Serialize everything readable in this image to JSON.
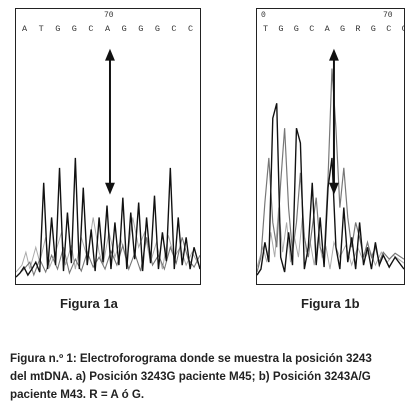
{
  "figure_a": {
    "tick": "70",
    "sequence": "A T G G C A G G G   C C C",
    "label": "Figura 1a"
  },
  "figure_b": {
    "tick_left": "0",
    "tick_right": "70",
    "sequence": "T G G C A G R G C C C",
    "label": "Figura 1b"
  },
  "caption": {
    "line1": "Figura n.º 1: Electroforograma donde se muestra la posición 3243",
    "line2": "del mtDNA.  a) Posición 3243G paciente M45; b) Posición 3243A/G",
    "line3": "paciente M43.  R = A ó G."
  }
}
